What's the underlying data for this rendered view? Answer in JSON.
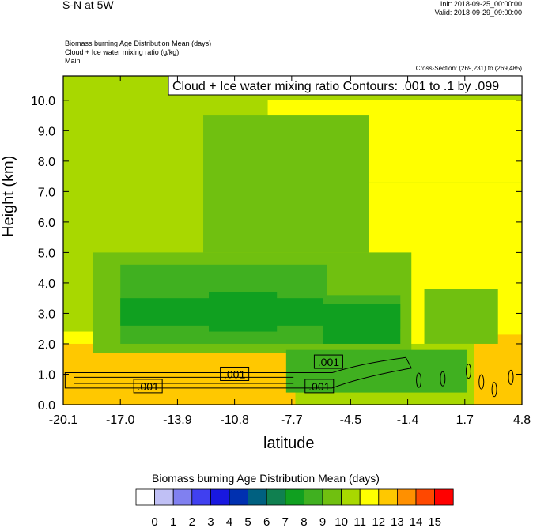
{
  "header": {
    "title": "S-N at 5W",
    "init": "Init: 2018-09-25_00:00:00",
    "valid": "Valid: 2018-09-29_09:00:00",
    "var1": "Biomass burning Age Distribution Mean   (days)",
    "var2": "Cloud + Ice water mixing ratio   (g/kg)",
    "var3": "Main",
    "cross_section": "Cross-Section: (269,231) to (269,485)"
  },
  "chart_data": {
    "type": "heatmap",
    "contour_label": "Cloud + Ice water mixing ratio Contours: .001 to .1 by .099",
    "xlabel": "latitude",
    "ylabel": "Height (km)",
    "xlim": [
      -20.1,
      4.8
    ],
    "ylim": [
      0.0,
      10.8
    ],
    "x_ticks": [
      "-20.1",
      "-17.0",
      "-13.9",
      "-10.8",
      "-7.7",
      "-4.5",
      "-1.4",
      "1.7",
      "4.8"
    ],
    "y_ticks": [
      "0.0",
      "1.0",
      "2.0",
      "3.0",
      "4.0",
      "5.0",
      "6.0",
      "7.0",
      "8.0",
      "9.0",
      "10.0"
    ],
    "contour_labels": [
      ".001",
      ".001",
      ".001",
      ".001"
    ],
    "colorbar": {
      "title": "Biomass burning Age Distribution Mean  (days)",
      "labels": [
        "0",
        "1",
        "2",
        "3",
        "4",
        "5",
        "6",
        "7",
        "8",
        "9",
        "10",
        "11",
        "12",
        "13",
        "14",
        "15"
      ],
      "colors": [
        "#ffffff",
        "#c0c0f5",
        "#8080f0",
        "#4040f0",
        "#1818e0",
        "#0030b0",
        "#006080",
        "#108050",
        "#10a020",
        "#40b020",
        "#70c010",
        "#a8d800",
        "#ffff00",
        "#ffc800",
        "#ff9000",
        "#ff4800",
        "#ff0000"
      ]
    },
    "regions": [
      {
        "level": 10,
        "x": [
          -20.1,
          4.8
        ],
        "y": [
          0.0,
          10.8
        ]
      },
      {
        "level": 11,
        "x": [
          -9.0,
          4.8
        ],
        "y": [
          7.3,
          10.0
        ]
      },
      {
        "level": 11,
        "x": [
          -3.5,
          4.8
        ],
        "y": [
          2.0,
          7.3
        ]
      },
      {
        "level": 11,
        "x": [
          -20.1,
          -14.0
        ],
        "y": [
          1.8,
          2.4
        ]
      },
      {
        "level": 12,
        "x": [
          -20.1,
          -7.5
        ],
        "y": [
          0.0,
          2.0
        ]
      },
      {
        "level": 12,
        "x": [
          2.2,
          4.8
        ],
        "y": [
          0.0,
          2.3
        ]
      },
      {
        "level": 9,
        "x": [
          -18.5,
          -1.2
        ],
        "y": [
          1.7,
          5.0
        ]
      },
      {
        "level": 9,
        "x": [
          -12.5,
          -3.5
        ],
        "y": [
          5.0,
          9.5
        ]
      },
      {
        "level": 9,
        "x": [
          -0.5,
          3.5
        ],
        "y": [
          2.0,
          3.8
        ]
      },
      {
        "level": 8,
        "x": [
          -17.0,
          -5.8
        ],
        "y": [
          2.0,
          4.6
        ]
      },
      {
        "level": 8,
        "x": [
          -6.0,
          -1.8
        ],
        "y": [
          2.5,
          3.6
        ]
      },
      {
        "level": 7,
        "x": [
          -17.0,
          -6.0
        ],
        "y": [
          2.6,
          3.5
        ]
      },
      {
        "level": 7,
        "x": [
          -12.2,
          -8.5
        ],
        "y": [
          2.4,
          3.7
        ]
      },
      {
        "level": 7,
        "x": [
          -6.0,
          -1.8
        ],
        "y": [
          2.0,
          3.3
        ]
      },
      {
        "level": 8,
        "x": [
          -8.0,
          1.8
        ],
        "y": [
          0.4,
          1.8
        ]
      }
    ]
  }
}
